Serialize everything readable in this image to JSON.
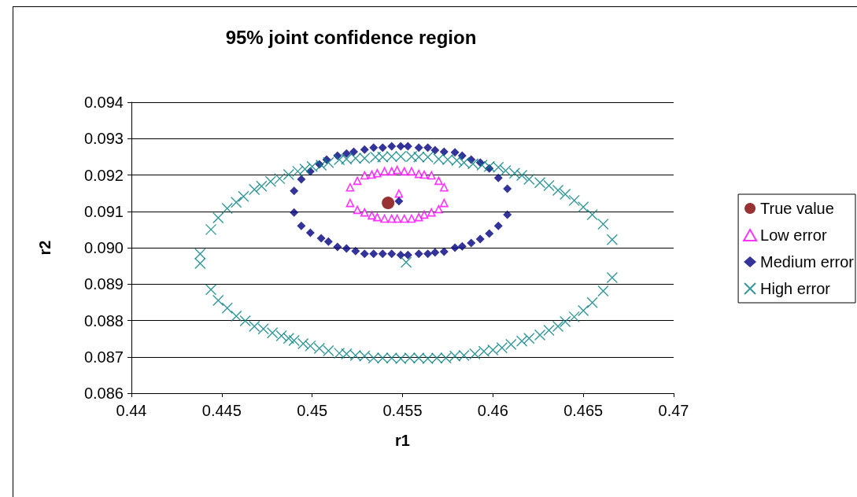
{
  "chart_data": {
    "type": "scatter",
    "title": "95% joint confidence region",
    "xlabel": "r1",
    "ylabel": "r2",
    "xlim": [
      0.44,
      0.47
    ],
    "xticks": [
      0.44,
      0.445,
      0.45,
      0.455,
      0.46,
      0.465,
      0.47
    ],
    "ylim": [
      0.086,
      0.094
    ],
    "yticks": [
      {
        "value": 0.086,
        "label": "0.086"
      },
      {
        "value": 0.087,
        "label": "0.087"
      },
      {
        "value": 0.088,
        "label": "0.088"
      },
      {
        "value": 0.089,
        "label": "0.089"
      },
      {
        "value": 0.09,
        "label": "0.090"
      },
      {
        "value": 0.091,
        "label": "0.091"
      },
      {
        "value": 0.092,
        "label": "0.092"
      },
      {
        "value": 0.093,
        "label": "0.093"
      },
      {
        "value": 0.094,
        "label": "0.094"
      }
    ],
    "grid": "y",
    "legend": "right",
    "series": [
      {
        "name": "True value",
        "color": "#800000",
        "marker": "circle",
        "x": [
          0.4542
        ],
        "values": [
          0.09123
        ]
      },
      {
        "name": "Low error",
        "color": "#ff00ff",
        "marker": "triangle",
        "x": [
          0.4548,
          0.4521,
          0.4525,
          0.4529,
          0.4533,
          0.4536,
          0.454,
          0.4544,
          0.4547,
          0.4551,
          0.4555,
          0.4559,
          0.4562,
          0.4566,
          0.457,
          0.4573,
          0.4573,
          0.457,
          0.4566,
          0.4562,
          0.4559,
          0.4555,
          0.4551,
          0.4547,
          0.4544,
          0.454,
          0.4536,
          0.4533,
          0.4529,
          0.4525,
          0.4521
        ],
        "values": [
          0.09149,
          0.09166,
          0.09184,
          0.09199,
          0.09201,
          0.09205,
          0.0921,
          0.0921,
          0.09214,
          0.0921,
          0.0921,
          0.09203,
          0.09201,
          0.09199,
          0.09184,
          0.09166,
          0.09123,
          0.09106,
          0.09097,
          0.09091,
          0.09084,
          0.0908,
          0.0908,
          0.0908,
          0.0908,
          0.0908,
          0.09084,
          0.09089,
          0.09097,
          0.09104,
          0.09123
        ]
      },
      {
        "name": "Medium error",
        "color": "#000080",
        "marker": "diamond",
        "x": [
          0.4548,
          0.449,
          0.4494,
          0.4499,
          0.4504,
          0.4508,
          0.4514,
          0.4519,
          0.4523,
          0.4529,
          0.4534,
          0.4539,
          0.4544,
          0.4549,
          0.4553,
          0.4559,
          0.4564,
          0.4568,
          0.4573,
          0.4579,
          0.4583,
          0.4588,
          0.4593,
          0.4598,
          0.4603,
          0.4608,
          0.449,
          0.4494,
          0.4499,
          0.4505,
          0.4509,
          0.4514,
          0.4519,
          0.4524,
          0.4529,
          0.4534,
          0.4539,
          0.4544,
          0.4549,
          0.4553,
          0.4559,
          0.4564,
          0.4568,
          0.4573,
          0.4579,
          0.4583,
          0.4588,
          0.4593,
          0.4598,
          0.4603,
          0.4608
        ],
        "values": [
          0.09128,
          0.09156,
          0.09188,
          0.0921,
          0.09229,
          0.09242,
          0.09253,
          0.09259,
          0.09264,
          0.0927,
          0.09275,
          0.09275,
          0.09279,
          0.09279,
          0.09279,
          0.09275,
          0.09275,
          0.09268,
          0.09264,
          0.09262,
          0.09253,
          0.09242,
          0.09234,
          0.09218,
          0.09192,
          0.09162,
          0.09097,
          0.0906,
          0.09041,
          0.09026,
          0.09017,
          0.09002,
          0.08998,
          0.08991,
          0.08983,
          0.08983,
          0.08983,
          0.08983,
          0.0898,
          0.0898,
          0.08983,
          0.08983,
          0.08987,
          0.08989,
          0.09,
          0.09004,
          0.09013,
          0.09024,
          0.09039,
          0.0906,
          0.09091
        ]
      },
      {
        "name": "High error",
        "color": "#008080",
        "marker": "cross",
        "x": [
          0.4552,
          0.4438,
          0.4438,
          0.4444,
          0.4448,
          0.4453,
          0.4458,
          0.4462,
          0.4468,
          0.4472,
          0.4477,
          0.4482,
          0.4487,
          0.4492,
          0.4496,
          0.45,
          0.4505,
          0.4509,
          0.4515,
          0.4519,
          0.4524,
          0.4529,
          0.4535,
          0.4539,
          0.4544,
          0.4549,
          0.4555,
          0.4559,
          0.4564,
          0.457,
          0.4575,
          0.458,
          0.4584,
          0.4589,
          0.4594,
          0.4598,
          0.4603,
          0.4607,
          0.4612,
          0.4616,
          0.462,
          0.4626,
          0.4631,
          0.4636,
          0.464,
          0.4645,
          0.465,
          0.4655,
          0.4661,
          0.4666,
          0.4666,
          0.4661,
          0.4655,
          0.465,
          0.4645,
          0.464,
          0.4636,
          0.4631,
          0.4626,
          0.462,
          0.4616,
          0.461,
          0.4605,
          0.46,
          0.4595,
          0.459,
          0.4584,
          0.4579,
          0.4574,
          0.4569,
          0.4564,
          0.4559,
          0.4554,
          0.4549,
          0.4544,
          0.4539,
          0.4534,
          0.4529,
          0.4524,
          0.4519,
          0.4515,
          0.4509,
          0.4504,
          0.4499,
          0.4495,
          0.449,
          0.4487,
          0.4483,
          0.4478,
          0.4473,
          0.4468,
          0.4463,
          0.4458,
          0.4453,
          0.4448,
          0.4444
        ],
        "values": [
          0.0896,
          0.08983,
          0.08957,
          0.0905,
          0.09082,
          0.09108,
          0.09125,
          0.09141,
          0.0916,
          0.09169,
          0.09182,
          0.0919,
          0.09201,
          0.0921,
          0.09216,
          0.09223,
          0.09227,
          0.09234,
          0.09242,
          0.09244,
          0.09246,
          0.09246,
          0.09249,
          0.09249,
          0.09251,
          0.09251,
          0.09251,
          0.09249,
          0.09249,
          0.09244,
          0.09242,
          0.0924,
          0.09234,
          0.09231,
          0.09227,
          0.09223,
          0.09221,
          0.09212,
          0.09205,
          0.09199,
          0.09188,
          0.09179,
          0.09171,
          0.09158,
          0.09147,
          0.0913,
          0.09112,
          0.09091,
          0.09065,
          0.09022,
          0.08918,
          0.08881,
          0.08849,
          0.08827,
          0.0881,
          0.08797,
          0.08784,
          0.08773,
          0.0876,
          0.08751,
          0.08743,
          0.08734,
          0.08725,
          0.08719,
          0.08715,
          0.08708,
          0.08704,
          0.08702,
          0.08697,
          0.08697,
          0.08695,
          0.08697,
          0.08697,
          0.08695,
          0.08697,
          0.08697,
          0.08697,
          0.08702,
          0.08704,
          0.08708,
          0.0871,
          0.08717,
          0.08723,
          0.0873,
          0.08736,
          0.08745,
          0.08751,
          0.08758,
          0.08766,
          0.08777,
          0.08784,
          0.08799,
          0.08812,
          0.08834,
          0.08855,
          0.08885
        ]
      }
    ]
  }
}
